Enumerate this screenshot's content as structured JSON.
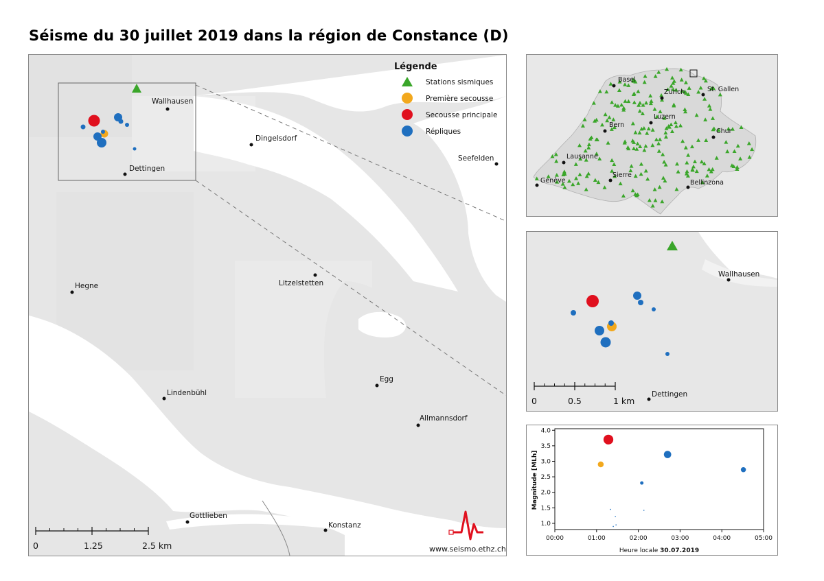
{
  "title": "Séisme du 30 juillet 2019 dans la région de Constance (D)",
  "colors": {
    "land": "#e6e6e6",
    "water": "#ffffff",
    "station": "#3aa62a",
    "premiere": "#f2a81d",
    "principale": "#e0101e",
    "repliques": "#1f6fbf",
    "logo": "#e0101e"
  },
  "legend": {
    "title": "Légende",
    "items": [
      {
        "label": "Stations sismiques",
        "symbol": "triangle",
        "color": "#3aa62a"
      },
      {
        "label": "Première secousse",
        "symbol": "circle",
        "color": "#f2a81d"
      },
      {
        "label": "Secousse principale",
        "symbol": "circle",
        "color": "#e0101e"
      },
      {
        "label": "Répliques",
        "symbol": "circle",
        "color": "#1f6fbf"
      }
    ]
  },
  "main_map": {
    "places": [
      "Wallhausen",
      "Dingelsdorf",
      "Dettingen",
      "Seefelden",
      "Hegne",
      "Litzelstetten",
      "Egg",
      "Lindenbühl",
      "Allmannsdorf",
      "Gottlieben",
      "Konstanz"
    ],
    "scale": {
      "labels": [
        "0",
        "1.25",
        "2.5 km"
      ]
    },
    "website": "www.seismo.ethz.ch",
    "logo_icon": "seismo-logo-icon"
  },
  "switzerland_map": {
    "cities": [
      "Basel",
      "Zürich",
      "St. Gallen",
      "Bern",
      "Luzern",
      "Chur",
      "Lausanne",
      "Genève",
      "Sierre",
      "Bellinzona"
    ]
  },
  "zoom_map": {
    "places": [
      "Wallhausen",
      "Dettingen"
    ],
    "scale": {
      "labels": [
        "0",
        "0.5",
        "1 km"
      ]
    }
  },
  "chart_data": {
    "type": "scatter",
    "xlabel": "Heure locale",
    "xlabel_bold": "30.07.2019",
    "ylabel": "Magnitude [MLh]",
    "x_ticks": [
      "00:00",
      "01:00",
      "02:00",
      "03:00",
      "04:00",
      "05:00"
    ],
    "y_ticks": [
      "1.0",
      "1.5",
      "2.0",
      "2.5",
      "3.0",
      "3.5",
      "4.0"
    ],
    "xlim": [
      0,
      300
    ],
    "ylim": [
      0.8,
      4.05
    ],
    "series": [
      {
        "name": "Première secousse",
        "color": "#f2a81d",
        "points": [
          {
            "t": 66,
            "m": 2.9
          }
        ]
      },
      {
        "name": "Secousse principale",
        "color": "#e0101e",
        "points": [
          {
            "t": 77,
            "m": 3.7
          }
        ]
      },
      {
        "name": "Répliques",
        "color": "#1f6fbf",
        "points": [
          {
            "t": 80,
            "m": 1.45
          },
          {
            "t": 84,
            "m": 0.9
          },
          {
            "t": 87,
            "m": 1.22
          },
          {
            "t": 88,
            "m": 0.95
          },
          {
            "t": 125,
            "m": 2.3
          },
          {
            "t": 128,
            "m": 1.42
          },
          {
            "t": 162,
            "m": 3.22
          },
          {
            "t": 271,
            "m": 2.73
          }
        ]
      }
    ]
  }
}
